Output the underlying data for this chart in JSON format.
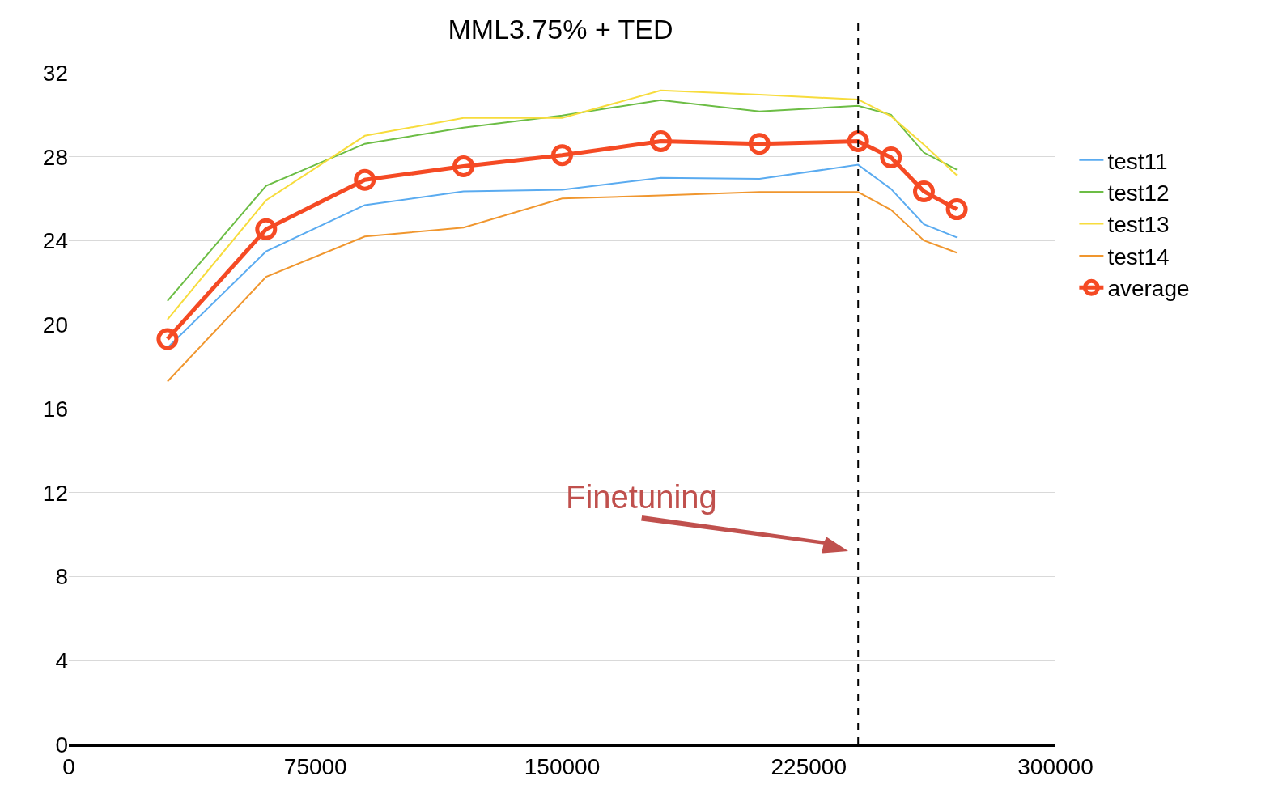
{
  "chart_data": {
    "type": "line",
    "title": "MML3.75% + TED",
    "x": [
      30000,
      60000,
      90000,
      120000,
      150000,
      180000,
      210000,
      240000,
      250000,
      260000,
      270000
    ],
    "series": [
      {
        "name": "test11",
        "color": "#5aabf0",
        "marker": "none",
        "values": [
          18.9,
          23.5,
          25.7,
          26.35,
          26.43,
          27.0,
          26.95,
          27.62,
          26.47,
          24.78,
          24.16
        ]
      },
      {
        "name": "test12",
        "color": "#6cbd45",
        "marker": "none",
        "values": [
          21.13,
          26.62,
          28.62,
          29.39,
          29.97,
          30.7,
          30.16,
          30.43,
          30.0,
          28.2,
          27.39
        ]
      },
      {
        "name": "test13",
        "color": "#f7dc3c",
        "marker": "none",
        "values": [
          20.25,
          25.93,
          29.0,
          29.85,
          29.85,
          31.16,
          30.96,
          30.73,
          29.93,
          28.58,
          27.12
        ]
      },
      {
        "name": "test14",
        "color": "#f0962e",
        "marker": "none",
        "values": [
          17.29,
          22.28,
          24.2,
          24.63,
          26.01,
          26.16,
          26.32,
          26.32,
          25.47,
          24.01,
          23.43
        ]
      },
      {
        "name": "average",
        "color": "#f54a24",
        "marker": "circle",
        "values": [
          19.32,
          24.55,
          26.9,
          27.55,
          28.08,
          28.74,
          28.62,
          28.74,
          27.97,
          26.35,
          25.5
        ]
      }
    ],
    "xlim": [
      0,
      300000
    ],
    "xticks": [
      0,
      75000,
      150000,
      225000,
      300000
    ],
    "ylim": [
      0,
      32
    ],
    "yticks": [
      0,
      4,
      8,
      12,
      16,
      20,
      24,
      28,
      32
    ],
    "grid": "y",
    "legend": "right",
    "line_style": "solid",
    "ref_lines": [
      {
        "axis": "x",
        "value": 240000,
        "color": "#000000",
        "line_style": "dashed"
      }
    ],
    "annotations": [
      "Finetuning"
    ]
  }
}
